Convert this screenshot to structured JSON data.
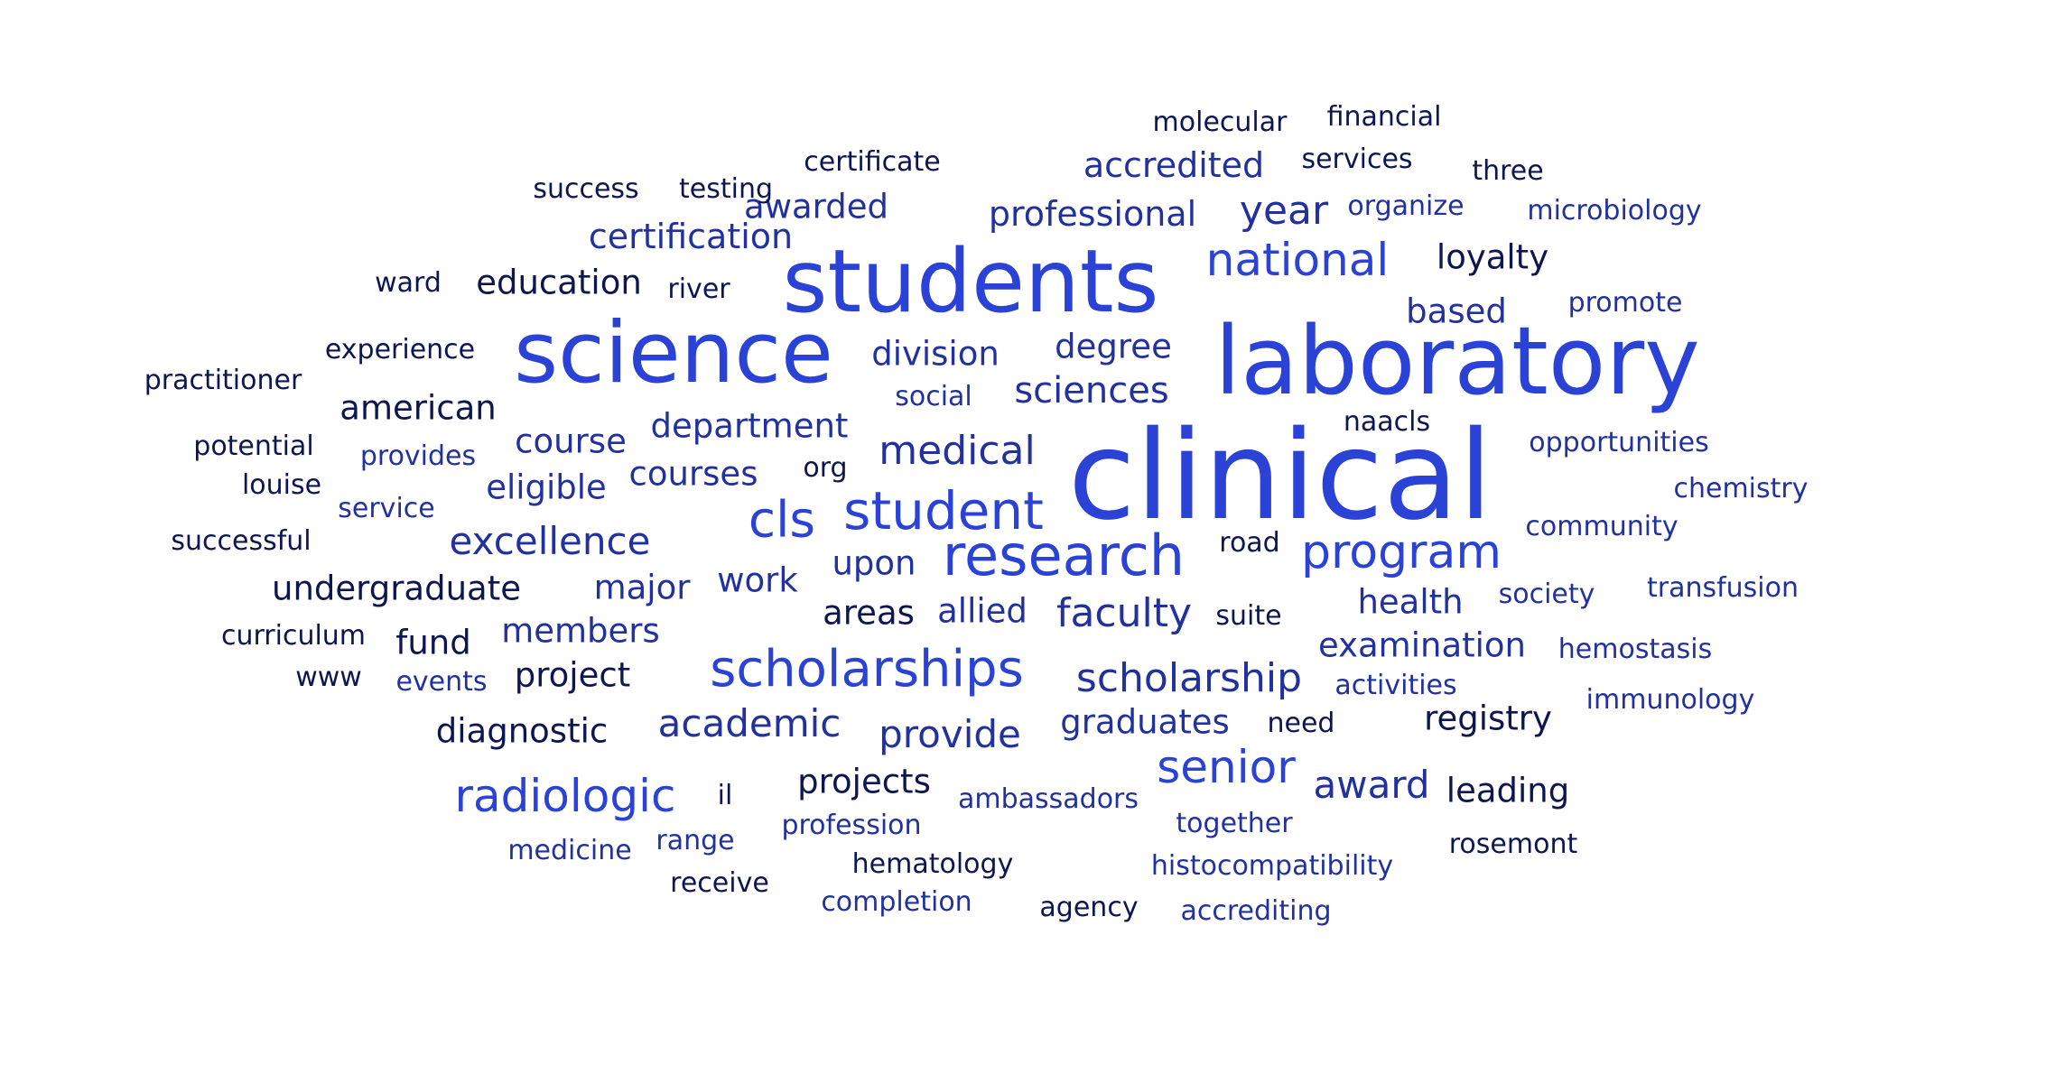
{
  "palette": {
    "bright_blue": "#2a42d6",
    "mid_blue": "#22319e",
    "navy": "#0d1650",
    "background": "#ffffff"
  },
  "words": [
    {
      "text": "clinical",
      "weight": 100,
      "color": "bright_blue"
    },
    {
      "text": "laboratory",
      "weight": 78,
      "color": "bright_blue"
    },
    {
      "text": "students",
      "weight": 72,
      "color": "bright_blue"
    },
    {
      "text": "science",
      "weight": 70,
      "color": "bright_blue"
    },
    {
      "text": "research",
      "weight": 45,
      "color": "bright_blue"
    },
    {
      "text": "student",
      "weight": 42,
      "color": "bright_blue"
    },
    {
      "text": "scholarships",
      "weight": 42,
      "color": "bright_blue"
    },
    {
      "text": "cls",
      "weight": 41,
      "color": "bright_blue"
    },
    {
      "text": "program",
      "weight": 38,
      "color": "bright_blue"
    },
    {
      "text": "national",
      "weight": 37,
      "color": "bright_blue"
    },
    {
      "text": "radiologic",
      "weight": 36,
      "color": "bright_blue"
    },
    {
      "text": "senior",
      "weight": 36,
      "color": "bright_blue"
    },
    {
      "text": "scholarship",
      "weight": 33,
      "color": "mid_blue"
    },
    {
      "text": "medical",
      "weight": 33,
      "color": "mid_blue"
    },
    {
      "text": "faculty",
      "weight": 33,
      "color": "mid_blue"
    },
    {
      "text": "year",
      "weight": 33,
      "color": "mid_blue"
    },
    {
      "text": "academic",
      "weight": 32,
      "color": "mid_blue"
    },
    {
      "text": "provide",
      "weight": 32,
      "color": "mid_blue"
    },
    {
      "text": "excellence",
      "weight": 32,
      "color": "mid_blue"
    },
    {
      "text": "award",
      "weight": 32,
      "color": "mid_blue"
    },
    {
      "text": "sciences",
      "weight": 30,
      "color": "mid_blue"
    },
    {
      "text": "professional",
      "weight": 29,
      "color": "mid_blue"
    },
    {
      "text": "certification",
      "weight": 29,
      "color": "mid_blue"
    },
    {
      "text": "accredited",
      "weight": 29,
      "color": "mid_blue"
    },
    {
      "text": "undergraduate",
      "weight": 28,
      "color": "navy"
    },
    {
      "text": "american",
      "weight": 28,
      "color": "navy"
    },
    {
      "text": "education",
      "weight": 28,
      "color": "navy"
    },
    {
      "text": "awarded",
      "weight": 28,
      "color": "mid_blue"
    },
    {
      "text": "division",
      "weight": 28,
      "color": "mid_blue"
    },
    {
      "text": "department",
      "weight": 28,
      "color": "mid_blue"
    },
    {
      "text": "degree",
      "weight": 28,
      "color": "mid_blue"
    },
    {
      "text": "based",
      "weight": 28,
      "color": "mid_blue"
    },
    {
      "text": "course",
      "weight": 28,
      "color": "mid_blue"
    },
    {
      "text": "courses",
      "weight": 28,
      "color": "mid_blue"
    },
    {
      "text": "eligible",
      "weight": 28,
      "color": "mid_blue"
    },
    {
      "text": "major",
      "weight": 28,
      "color": "mid_blue"
    },
    {
      "text": "work",
      "weight": 28,
      "color": "mid_blue"
    },
    {
      "text": "upon",
      "weight": 28,
      "color": "mid_blue"
    },
    {
      "text": "allied",
      "weight": 28,
      "color": "mid_blue"
    },
    {
      "text": "health",
      "weight": 28,
      "color": "mid_blue"
    },
    {
      "text": "examination",
      "weight": 28,
      "color": "mid_blue"
    },
    {
      "text": "members",
      "weight": 28,
      "color": "mid_blue"
    },
    {
      "text": "graduates",
      "weight": 28,
      "color": "mid_blue"
    },
    {
      "text": "loyalty",
      "weight": 28,
      "color": "navy"
    },
    {
      "text": "leading",
      "weight": 28,
      "color": "navy"
    },
    {
      "text": "registry",
      "weight": 28,
      "color": "navy"
    },
    {
      "text": "diagnostic",
      "weight": 28,
      "color": "navy"
    },
    {
      "text": "projects",
      "weight": 28,
      "color": "navy"
    },
    {
      "text": "project",
      "weight": 28,
      "color": "navy"
    },
    {
      "text": "fund",
      "weight": 28,
      "color": "navy"
    },
    {
      "text": "areas",
      "weight": 28,
      "color": "navy"
    },
    {
      "text": "molecular",
      "weight": 22,
      "color": "navy"
    },
    {
      "text": "financial",
      "weight": 22,
      "color": "navy"
    },
    {
      "text": "services",
      "weight": 22,
      "color": "navy"
    },
    {
      "text": "three",
      "weight": 22,
      "color": "navy"
    },
    {
      "text": "certificate",
      "weight": 22,
      "color": "navy"
    },
    {
      "text": "success",
      "weight": 22,
      "color": "navy"
    },
    {
      "text": "testing",
      "weight": 22,
      "color": "navy"
    },
    {
      "text": "organize",
      "weight": 22,
      "color": "mid_blue"
    },
    {
      "text": "microbiology",
      "weight": 22,
      "color": "mid_blue"
    },
    {
      "text": "ward",
      "weight": 22,
      "color": "navy"
    },
    {
      "text": "river",
      "weight": 22,
      "color": "navy"
    },
    {
      "text": "promote",
      "weight": 22,
      "color": "mid_blue"
    },
    {
      "text": "experience",
      "weight": 22,
      "color": "navy"
    },
    {
      "text": "practitioner",
      "weight": 22,
      "color": "navy"
    },
    {
      "text": "social",
      "weight": 22,
      "color": "mid_blue"
    },
    {
      "text": "naacls",
      "weight": 22,
      "color": "navy"
    },
    {
      "text": "potential",
      "weight": 22,
      "color": "navy"
    },
    {
      "text": "provides",
      "weight": 22,
      "color": "mid_blue"
    },
    {
      "text": "opportunities",
      "weight": 22,
      "color": "mid_blue"
    },
    {
      "text": "org",
      "weight": 22,
      "color": "navy"
    },
    {
      "text": "louise",
      "weight": 22,
      "color": "navy"
    },
    {
      "text": "chemistry",
      "weight": 22,
      "color": "mid_blue"
    },
    {
      "text": "service",
      "weight": 22,
      "color": "mid_blue"
    },
    {
      "text": "successful",
      "weight": 22,
      "color": "navy"
    },
    {
      "text": "road",
      "weight": 22,
      "color": "navy"
    },
    {
      "text": "community",
      "weight": 22,
      "color": "mid_blue"
    },
    {
      "text": "society",
      "weight": 22,
      "color": "mid_blue"
    },
    {
      "text": "transfusion",
      "weight": 22,
      "color": "mid_blue"
    },
    {
      "text": "curriculum",
      "weight": 22,
      "color": "navy"
    },
    {
      "text": "suite",
      "weight": 22,
      "color": "navy"
    },
    {
      "text": "hemostasis",
      "weight": 22,
      "color": "mid_blue"
    },
    {
      "text": "www",
      "weight": 22,
      "color": "navy"
    },
    {
      "text": "events",
      "weight": 22,
      "color": "mid_blue"
    },
    {
      "text": "activities",
      "weight": 22,
      "color": "mid_blue"
    },
    {
      "text": "immunology",
      "weight": 22,
      "color": "mid_blue"
    },
    {
      "text": "need",
      "weight": 22,
      "color": "navy"
    },
    {
      "text": "il",
      "weight": 22,
      "color": "navy"
    },
    {
      "text": "ambassadors",
      "weight": 22,
      "color": "mid_blue"
    },
    {
      "text": "together",
      "weight": 22,
      "color": "mid_blue"
    },
    {
      "text": "range",
      "weight": 22,
      "color": "mid_blue"
    },
    {
      "text": "profession",
      "weight": 22,
      "color": "mid_blue"
    },
    {
      "text": "medicine",
      "weight": 22,
      "color": "mid_blue"
    },
    {
      "text": "rosemont",
      "weight": 22,
      "color": "navy"
    },
    {
      "text": "hematology",
      "weight": 22,
      "color": "navy"
    },
    {
      "text": "histocompatibility",
      "weight": 22,
      "color": "mid_blue"
    },
    {
      "text": "receive",
      "weight": 22,
      "color": "navy"
    },
    {
      "text": "completion",
      "weight": 22,
      "color": "mid_blue"
    },
    {
      "text": "agency",
      "weight": 22,
      "color": "navy"
    },
    {
      "text": "accrediting",
      "weight": 22,
      "color": "mid_blue"
    }
  ]
}
